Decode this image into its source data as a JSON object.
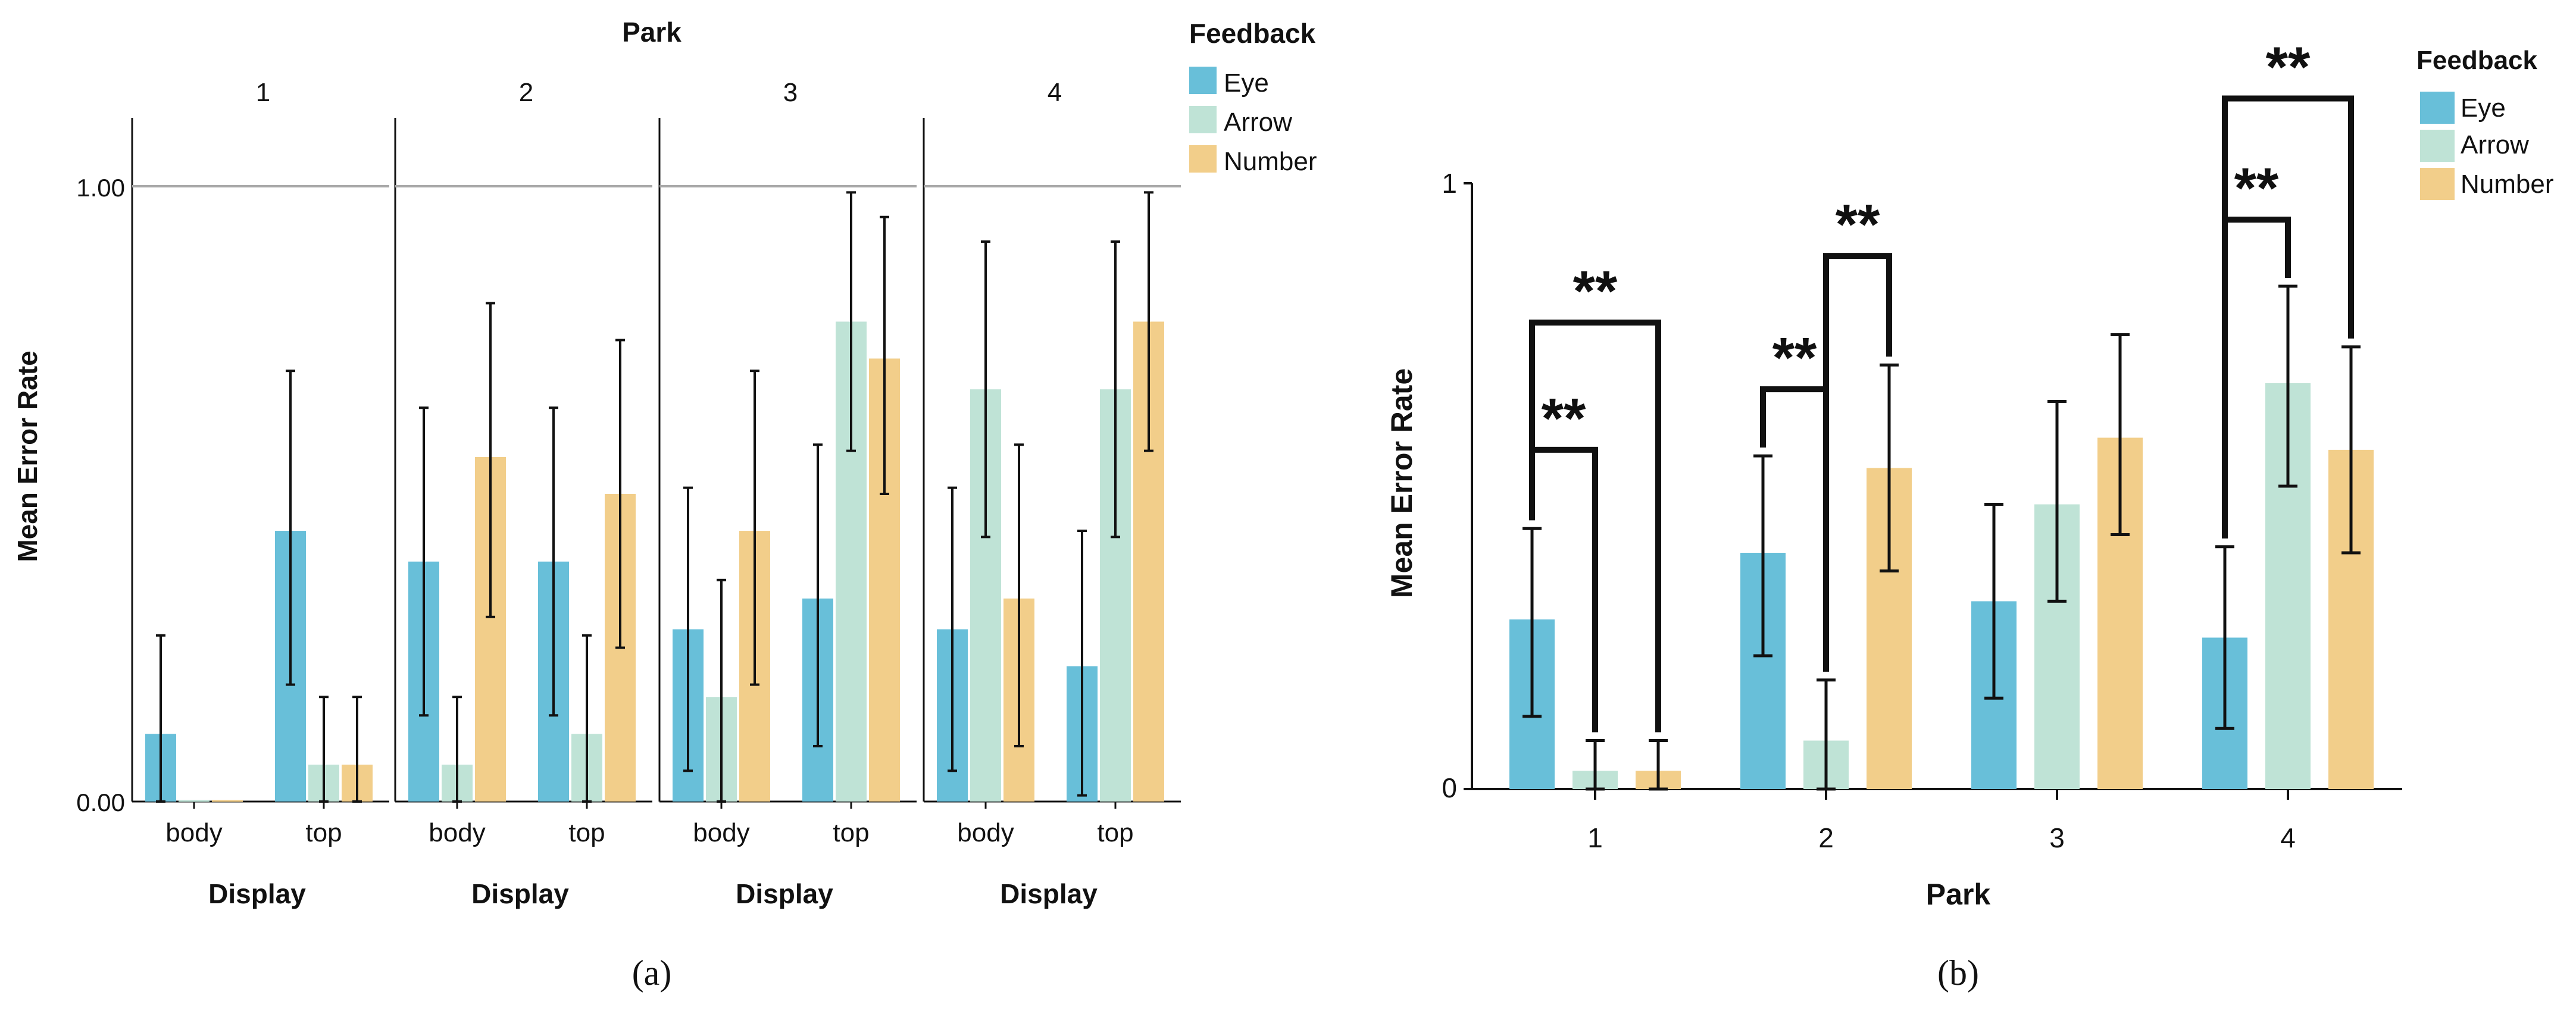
{
  "figure_a": {
    "caption": "(a)",
    "legend": {
      "title": "Feedback",
      "items": [
        "Eye",
        "Arrow",
        "Number"
      ]
    },
    "chart_data": {
      "type": "bar",
      "facet_title": "Park",
      "facets": [
        "1",
        "2",
        "3",
        "4"
      ],
      "categories": [
        "body",
        "top"
      ],
      "xlabel": "Display",
      "ylabel": "Mean Error Rate",
      "ylim": [
        0,
        1.1
      ],
      "yticks": [
        0,
        1
      ],
      "ytick_labels": [
        "0.00",
        "1.00"
      ],
      "reference_line": 1.0,
      "legend_placement": "right",
      "panels": [
        {
          "facet": "1",
          "series": [
            {
              "name": "Eye",
              "values": [
                0.11,
                0.44
              ],
              "err_low": [
                0.0,
                0.19
              ],
              "err_high": [
                0.27,
                0.7
              ]
            },
            {
              "name": "Arrow",
              "values": [
                0.0,
                0.06
              ],
              "err_low": [
                0.0,
                0.0
              ],
              "err_high": [
                0.0,
                0.17
              ]
            },
            {
              "name": "Number",
              "values": [
                0.0,
                0.06
              ],
              "err_low": [
                0.0,
                0.0
              ],
              "err_high": [
                0.0,
                0.17
              ]
            }
          ]
        },
        {
          "facet": "2",
          "series": [
            {
              "name": "Eye",
              "values": [
                0.39,
                0.39
              ],
              "err_low": [
                0.14,
                0.14
              ],
              "err_high": [
                0.64,
                0.64
              ]
            },
            {
              "name": "Arrow",
              "values": [
                0.06,
                0.11
              ],
              "err_low": [
                0.0,
                0.0
              ],
              "err_high": [
                0.17,
                0.27
              ]
            },
            {
              "name": "Number",
              "values": [
                0.56,
                0.5
              ],
              "err_low": [
                0.3,
                0.25
              ],
              "err_high": [
                0.81,
                0.75
              ]
            }
          ]
        },
        {
          "facet": "3",
          "series": [
            {
              "name": "Eye",
              "values": [
                0.28,
                0.33
              ],
              "err_low": [
                0.05,
                0.09
              ],
              "err_high": [
                0.51,
                0.58
              ]
            },
            {
              "name": "Arrow",
              "values": [
                0.17,
                0.78
              ],
              "err_low": [
                0.0,
                0.57
              ],
              "err_high": [
                0.36,
                0.99
              ]
            },
            {
              "name": "Number",
              "values": [
                0.44,
                0.72
              ],
              "err_low": [
                0.19,
                0.5
              ],
              "err_high": [
                0.7,
                0.95
              ]
            }
          ]
        },
        {
          "facet": "4",
          "series": [
            {
              "name": "Eye",
              "values": [
                0.28,
                0.22
              ],
              "err_low": [
                0.05,
                0.01
              ],
              "err_high": [
                0.51,
                0.44
              ]
            },
            {
              "name": "Arrow",
              "values": [
                0.67,
                0.67
              ],
              "err_low": [
                0.43,
                0.43
              ],
              "err_high": [
                0.91,
                0.91
              ]
            },
            {
              "name": "Number",
              "values": [
                0.33,
                0.78
              ],
              "err_low": [
                0.09,
                0.57
              ],
              "err_high": [
                0.58,
                0.99
              ]
            }
          ]
        }
      ]
    }
  },
  "figure_b": {
    "caption": "(b)",
    "legend": {
      "title": "Feedback",
      "items": [
        "Eye",
        "Arrow",
        "Number"
      ]
    },
    "chart_data": {
      "type": "bar",
      "categories": [
        "1",
        "2",
        "3",
        "4"
      ],
      "xlabel": "Park",
      "ylabel": "Mean Error Rate",
      "ylim": [
        0,
        1.2
      ],
      "yticks": [
        0,
        1
      ],
      "ytick_labels": [
        "0",
        "1"
      ],
      "legend_placement": "top-right",
      "series": [
        {
          "name": "Eye",
          "values": [
            0.28,
            0.39,
            0.31,
            0.25
          ],
          "err_low": [
            0.12,
            0.22,
            0.15,
            0.1
          ],
          "err_high": [
            0.43,
            0.55,
            0.47,
            0.4
          ]
        },
        {
          "name": "Arrow",
          "values": [
            0.03,
            0.08,
            0.47,
            0.67
          ],
          "err_low": [
            0.0,
            0.0,
            0.31,
            0.5
          ],
          "err_high": [
            0.08,
            0.18,
            0.64,
            0.83
          ]
        },
        {
          "name": "Number",
          "values": [
            0.03,
            0.53,
            0.58,
            0.56
          ],
          "err_low": [
            0.0,
            0.36,
            0.42,
            0.39
          ],
          "err_high": [
            0.08,
            0.7,
            0.75,
            0.73
          ]
        }
      ],
      "significance": [
        {
          "category": "1",
          "from": "Eye",
          "to": "Arrow",
          "label": "**",
          "y": 0.56
        },
        {
          "category": "1",
          "from": "Eye",
          "to": "Number",
          "label": "**",
          "y": 0.77
        },
        {
          "category": "2",
          "from": "Eye",
          "to": "Arrow",
          "label": "**",
          "y": 0.66
        },
        {
          "category": "2",
          "from": "Arrow",
          "to": "Number",
          "label": "**",
          "y": 0.88
        },
        {
          "category": "4",
          "from": "Eye",
          "to": "Arrow",
          "label": "**",
          "y": 0.94
        },
        {
          "category": "4",
          "from": "Eye",
          "to": "Number",
          "label": "**",
          "y": 1.14
        }
      ]
    }
  },
  "colors": {
    "Eye": "#68bfd9",
    "Arrow": "#bfe3d6",
    "Number": "#f2ce8a"
  }
}
